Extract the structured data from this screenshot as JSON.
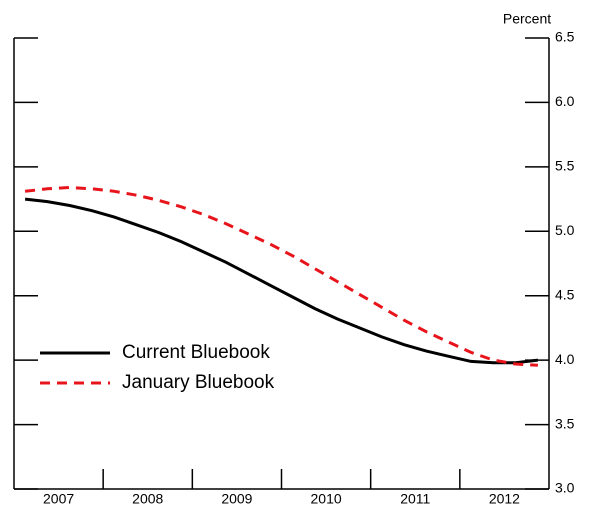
{
  "chart_data": {
    "type": "line",
    "y_axis_label": "Percent",
    "x": [
      2007.125,
      2007.375,
      2007.625,
      2007.875,
      2008.125,
      2008.375,
      2008.625,
      2008.875,
      2009.125,
      2009.375,
      2009.625,
      2009.875,
      2010.125,
      2010.375,
      2010.625,
      2010.875,
      2011.125,
      2011.375,
      2011.625,
      2011.875,
      2012.125,
      2012.375,
      2012.625,
      2012.875
    ],
    "series": [
      {
        "name": "Current Bluebook",
        "color": "#000000",
        "dash": "solid",
        "values": [
          5.25,
          5.23,
          5.2,
          5.16,
          5.11,
          5.05,
          4.99,
          4.92,
          4.84,
          4.76,
          4.67,
          4.58,
          4.49,
          4.4,
          4.32,
          4.25,
          4.18,
          4.12,
          4.07,
          4.03,
          3.99,
          3.98,
          3.98,
          4.0
        ]
      },
      {
        "name": "January Bluebook",
        "color": "#e8141b",
        "dash": "dashed",
        "values": [
          5.31,
          5.33,
          5.34,
          5.33,
          5.31,
          5.28,
          5.24,
          5.19,
          5.13,
          5.06,
          4.98,
          4.9,
          4.81,
          4.71,
          4.61,
          4.51,
          4.41,
          4.31,
          4.22,
          4.14,
          4.06,
          4.0,
          3.97,
          3.96
        ]
      }
    ],
    "xlim": [
      2007,
      2013
    ],
    "xticks": [
      2007,
      2008,
      2009,
      2010,
      2011,
      2012
    ],
    "ylim": [
      3.0,
      6.5
    ],
    "yticks": [
      {
        "value": 3,
        "label": "3.0"
      },
      3.5,
      {
        "value": 4,
        "label": "4.0"
      },
      4.5,
      {
        "value": 5,
        "label": "5.0"
      },
      5.5,
      {
        "value": 6,
        "label": "6.0"
      },
      6.5
    ]
  }
}
